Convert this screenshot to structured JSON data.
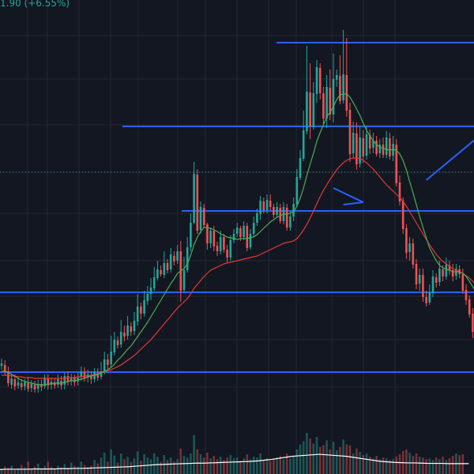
{
  "header": {
    "change_text": "1.90 (+6.55%)"
  },
  "colors": {
    "background": "#131722",
    "grid": "#232734",
    "up": "#26a69a",
    "down": "#ef5350",
    "ma_fast": "#4caf50",
    "ma_slow": "#e53935",
    "drawing": "#2962ff",
    "price_line": "#26a69a",
    "volume_line": "#ffffff"
  },
  "chart_data": {
    "type": "candlestick",
    "candles": [
      [
        463,
        460,
        454,
        468
      ],
      [
        462,
        470,
        456,
        474
      ],
      [
        470,
        485,
        464,
        489
      ],
      [
        487,
        479,
        474,
        492
      ],
      [
        480,
        489,
        474,
        494
      ],
      [
        488,
        484,
        478,
        492
      ],
      [
        485,
        490,
        480,
        494
      ],
      [
        489,
        484,
        480,
        494
      ],
      [
        485,
        492,
        478,
        496
      ],
      [
        491,
        486,
        481,
        496
      ],
      [
        487,
        493,
        482,
        497
      ],
      [
        492,
        486,
        481,
        497
      ],
      [
        486,
        490,
        481,
        495
      ],
      [
        489,
        478,
        474,
        492
      ],
      [
        479,
        488,
        474,
        493
      ],
      [
        487,
        483,
        478,
        493
      ],
      [
        484,
        488,
        479,
        492
      ],
      [
        487,
        480,
        474,
        491
      ],
      [
        482,
        488,
        476,
        493
      ],
      [
        487,
        476,
        472,
        493
      ],
      [
        476,
        483,
        470,
        488
      ],
      [
        482,
        478,
        473,
        488
      ],
      [
        478,
        484,
        474,
        489
      ],
      [
        483,
        478,
        472,
        488
      ],
      [
        477,
        470,
        464,
        482
      ],
      [
        471,
        479,
        465,
        483
      ],
      [
        478,
        474,
        468,
        484
      ],
      [
        475,
        480,
        470,
        486
      ],
      [
        480,
        471,
        466,
        484
      ],
      [
        472,
        478,
        466,
        482
      ],
      [
        477,
        470,
        458,
        480
      ],
      [
        470,
        455,
        445,
        474
      ],
      [
        455,
        462,
        448,
        467
      ],
      [
        461,
        445,
        425,
        465
      ],
      [
        446,
        430,
        420,
        450
      ],
      [
        431,
        437,
        426,
        441
      ],
      [
        436,
        420,
        405,
        440
      ],
      [
        421,
        426,
        412,
        432
      ],
      [
        425,
        412,
        400,
        430
      ],
      [
        413,
        420,
        408,
        425
      ],
      [
        419,
        406,
        395,
        424
      ],
      [
        407,
        388,
        372,
        412
      ],
      [
        388,
        397,
        383,
        404
      ],
      [
        397,
        380,
        368,
        401
      ],
      [
        381,
        372,
        362,
        386
      ],
      [
        372,
        364,
        352,
        380
      ],
      [
        365,
        351,
        338,
        368
      ],
      [
        352,
        341,
        330,
        355
      ],
      [
        342,
        347,
        336,
        350
      ],
      [
        348,
        333,
        318,
        352
      ],
      [
        333,
        342,
        328,
        346
      ],
      [
        341,
        322,
        314,
        345
      ],
      [
        324,
        331,
        318,
        336
      ],
      [
        330,
        318,
        310,
        334
      ],
      [
        318,
        368,
        305,
        382
      ],
      [
        367,
        342,
        325,
        370
      ],
      [
        342,
        313,
        300,
        345
      ],
      [
        313,
        282,
        270,
        318
      ],
      [
        282,
        220,
        205,
        284
      ],
      [
        221,
        292,
        214,
        296
      ],
      [
        291,
        262,
        255,
        296
      ],
      [
        263,
        285,
        258,
        289
      ],
      [
        284,
        308,
        282,
        316
      ],
      [
        308,
        292,
        288,
        314
      ],
      [
        292,
        312,
        286,
        318
      ],
      [
        311,
        318,
        306,
        324
      ],
      [
        318,
        300,
        292,
        322
      ],
      [
        300,
        316,
        296,
        320
      ],
      [
        316,
        326,
        310,
        332
      ],
      [
        326,
        304,
        298,
        330
      ],
      [
        304,
        296,
        290,
        308
      ],
      [
        296,
        288,
        282,
        300
      ],
      [
        289,
        300,
        286,
        305
      ],
      [
        300,
        286,
        280,
        304
      ],
      [
        286,
        314,
        282,
        318
      ],
      [
        313,
        296,
        290,
        316
      ],
      [
        296,
        282,
        274,
        300
      ],
      [
        282,
        270,
        264,
        286
      ],
      [
        271,
        254,
        248,
        278
      ],
      [
        255,
        266,
        250,
        270
      ],
      [
        266,
        253,
        246,
        270
      ],
      [
        254,
        262,
        246,
        266
      ],
      [
        262,
        272,
        258,
        276
      ],
      [
        272,
        262,
        256,
        276
      ],
      [
        263,
        280,
        258,
        283
      ],
      [
        280,
        262,
        256,
        284
      ],
      [
        263,
        288,
        258,
        292
      ],
      [
        288,
        274,
        268,
        292
      ],
      [
        274,
        258,
        250,
        280
      ],
      [
        259,
        224,
        214,
        262
      ],
      [
        225,
        200,
        190,
        228
      ],
      [
        201,
        165,
        140,
        204
      ],
      [
        166,
        116,
        58,
        170
      ],
      [
        117,
        160,
        80,
        176
      ],
      [
        161,
        118,
        104,
        164
      ],
      [
        119,
        85,
        76,
        130
      ],
      [
        86,
        118,
        80,
        126
      ],
      [
        118,
        150,
        110,
        158
      ],
      [
        150,
        110,
        95,
        162
      ],
      [
        111,
        145,
        88,
        152
      ],
      [
        145,
        100,
        68,
        155
      ],
      [
        101,
        95,
        88,
        110
      ],
      [
        96,
        128,
        70,
        132
      ],
      [
        127,
        94,
        38,
        131
      ],
      [
        95,
        140,
        48,
        148
      ],
      [
        139,
        195,
        130,
        205
      ],
      [
        194,
        168,
        154,
        200
      ],
      [
        169,
        208,
        155,
        215
      ],
      [
        207,
        174,
        160,
        212
      ],
      [
        175,
        198,
        165,
        206
      ],
      [
        197,
        170,
        160,
        202
      ],
      [
        171,
        188,
        164,
        195
      ],
      [
        187,
        178,
        168,
        194
      ],
      [
        178,
        195,
        172,
        198
      ],
      [
        194,
        183,
        176,
        200
      ],
      [
        183,
        196,
        174,
        200
      ],
      [
        196,
        174,
        166,
        200
      ],
      [
        175,
        198,
        168,
        202
      ],
      [
        197,
        182,
        172,
        204
      ],
      [
        183,
        232,
        176,
        236
      ],
      [
        231,
        255,
        222,
        260
      ],
      [
        254,
        290,
        250,
        296
      ],
      [
        289,
        320,
        284,
        328
      ],
      [
        319,
        308,
        300,
        330
      ],
      [
        308,
        335,
        302,
        340
      ],
      [
        334,
        360,
        328,
        366
      ],
      [
        359,
        348,
        340,
        368
      ],
      [
        348,
        376,
        340,
        382
      ],
      [
        376,
        384,
        368,
        388
      ],
      [
        383,
        370,
        360,
        386
      ],
      [
        371,
        350,
        342,
        376
      ],
      [
        351,
        358,
        346,
        364
      ],
      [
        357,
        340,
        330,
        362
      ],
      [
        341,
        350,
        336,
        356
      ],
      [
        350,
        335,
        326,
        354
      ],
      [
        336,
        342,
        330,
        348
      ],
      [
        342,
        350,
        334,
        356
      ],
      [
        349,
        340,
        334,
        354
      ],
      [
        341,
        347,
        336,
        352
      ],
      [
        347,
        368,
        340,
        372
      ],
      [
        367,
        380,
        360,
        386
      ],
      [
        379,
        398,
        374,
        402
      ],
      [
        397,
        420,
        390,
        428
      ],
      [
        419,
        412,
        400,
        426
      ],
      [
        412,
        440,
        406,
        452
      ]
    ],
    "ma_fast": [
      470,
      470,
      471,
      474,
      476,
      479,
      481,
      483,
      484,
      485,
      486,
      487,
      487,
      487,
      486,
      486,
      485,
      485,
      485,
      484,
      483,
      482,
      482,
      481,
      480,
      479,
      477,
      476,
      475,
      474,
      472,
      470,
      468,
      465,
      461,
      456,
      452,
      447,
      442,
      438,
      432,
      426,
      420,
      414,
      408,
      401,
      394,
      387,
      380,
      373,
      366,
      359,
      353,
      346,
      343,
      340,
      334,
      323,
      310,
      300,
      293,
      288,
      288,
      289,
      291,
      293,
      296,
      298,
      300,
      301,
      302,
      303,
      302,
      302,
      302,
      301,
      300,
      297,
      293,
      289,
      285,
      281,
      278,
      275,
      273,
      271,
      271,
      270,
      268,
      261,
      251,
      238,
      222,
      208,
      194,
      179,
      168,
      158,
      148,
      142,
      135,
      126,
      120,
      119,
      119,
      123,
      130,
      138,
      146,
      156,
      165,
      172,
      178,
      183,
      186,
      188,
      189,
      190,
      189,
      190,
      195,
      203,
      215,
      230,
      244,
      259,
      274,
      288,
      301,
      314,
      322,
      330,
      336,
      339,
      341,
      342,
      344,
      344,
      344,
      346,
      350,
      356,
      363,
      370,
      378,
      386
    ],
    "ma_slow": [
      475,
      475,
      475,
      476,
      476,
      477,
      477,
      478,
      478,
      478,
      479,
      479,
      479,
      479,
      479,
      479,
      479,
      479,
      479,
      479,
      478,
      478,
      478,
      477,
      477,
      476,
      476,
      475,
      474,
      473,
      472,
      471,
      469,
      468,
      466,
      464,
      462,
      459,
      456,
      453,
      450,
      446,
      442,
      438,
      434,
      430,
      425,
      420,
      415,
      410,
      405,
      400,
      395,
      390,
      386,
      382,
      378,
      372,
      365,
      360,
      355,
      350,
      346,
      342,
      340,
      338,
      336,
      334,
      333,
      332,
      331,
      330,
      329,
      328,
      327,
      326,
      325,
      324,
      322,
      320,
      318,
      316,
      314,
      312,
      310,
      308,
      307,
      306,
      305,
      302,
      297,
      291,
      284,
      276,
      267,
      258,
      249,
      241,
      234,
      227,
      221,
      215,
      210,
      206,
      203,
      201,
      200,
      200,
      201,
      203,
      206,
      210,
      214,
      219,
      224,
      229,
      234,
      238,
      242,
      246,
      250,
      255,
      261,
      268,
      275,
      282,
      289,
      296,
      303,
      310,
      316,
      322,
      327,
      331,
      334,
      337,
      340,
      342,
      344,
      346,
      349,
      352,
      356,
      360,
      365,
      370
    ],
    "volume": [
      0.12,
      0.18,
      0.15,
      0.2,
      0.1,
      0.14,
      0.22,
      0.16,
      0.3,
      0.12,
      0.18,
      0.25,
      0.14,
      0.2,
      0.3,
      0.18,
      0.12,
      0.2,
      0.16,
      0.24,
      0.15,
      0.28,
      0.2,
      0.18,
      0.3,
      0.22,
      0.16,
      0.2,
      0.34,
      0.26,
      0.4,
      0.52,
      0.3,
      0.6,
      0.45,
      0.28,
      0.5,
      0.36,
      0.42,
      0.3,
      0.38,
      0.55,
      0.32,
      0.48,
      0.4,
      0.36,
      0.5,
      0.42,
      0.3,
      0.46,
      0.34,
      0.4,
      0.3,
      0.36,
      0.62,
      0.44,
      0.4,
      0.5,
      0.95,
      0.6,
      0.48,
      0.4,
      0.52,
      0.38,
      0.44,
      0.36,
      0.42,
      0.34,
      0.4,
      0.46,
      0.38,
      0.4,
      0.32,
      0.38,
      0.48,
      0.36,
      0.42,
      0.4,
      0.5,
      0.34,
      0.38,
      0.32,
      0.36,
      0.4,
      0.44,
      0.36,
      0.5,
      0.38,
      0.42,
      0.6,
      0.72,
      0.8,
      1.0,
      0.86,
      0.74,
      0.9,
      0.66,
      0.7,
      0.82,
      0.6,
      0.78,
      0.58,
      0.66,
      0.84,
      0.72,
      0.7,
      0.5,
      0.62,
      0.54,
      0.46,
      0.5,
      0.42,
      0.38,
      0.44,
      0.36,
      0.4,
      0.38,
      0.34,
      0.36,
      0.42,
      0.48,
      0.56,
      0.6,
      0.52,
      0.44,
      0.5,
      0.42,
      0.4,
      0.36,
      0.38,
      0.34,
      0.4,
      0.36,
      0.42,
      0.34,
      0.38,
      0.44,
      0.5,
      0.46,
      0.48
    ],
    "volume_ma": [
      0.18,
      0.19,
      0.19,
      0.19,
      0.19,
      0.2,
      0.2,
      0.2,
      0.2,
      0.21,
      0.21,
      0.22,
      0.22,
      0.23,
      0.24,
      0.25,
      0.26,
      0.27,
      0.28,
      0.29,
      0.31,
      0.33,
      0.35,
      0.37,
      0.38,
      0.39,
      0.4,
      0.41,
      0.42,
      0.43,
      0.43,
      0.44,
      0.45,
      0.46,
      0.47,
      0.48,
      0.49,
      0.5,
      0.52,
      0.55,
      0.58,
      0.62,
      0.66,
      0.7,
      0.72,
      0.74,
      0.76,
      0.78,
      0.76,
      0.74,
      0.72,
      0.7,
      0.66,
      0.62,
      0.58,
      0.54,
      0.5,
      0.48,
      0.46,
      0.45,
      0.44,
      0.44,
      0.43,
      0.42,
      0.42,
      0.42,
      0.41,
      0.41,
      0.41,
      0.41
    ],
    "horizontal_levels": [
      54,
      160,
      267,
      370,
      471
    ],
    "trendlines": [
      {
        "from": [
          100,
          238
        ],
        "to": [
          109,
          256
        ]
      },
      {
        "from": [
          109,
          256
        ],
        "to": [
          103,
          259
        ]
      },
      {
        "from": [
          128,
          228
        ],
        "to": [
          144,
          172
        ]
      }
    ],
    "current_price_level": 218
  }
}
